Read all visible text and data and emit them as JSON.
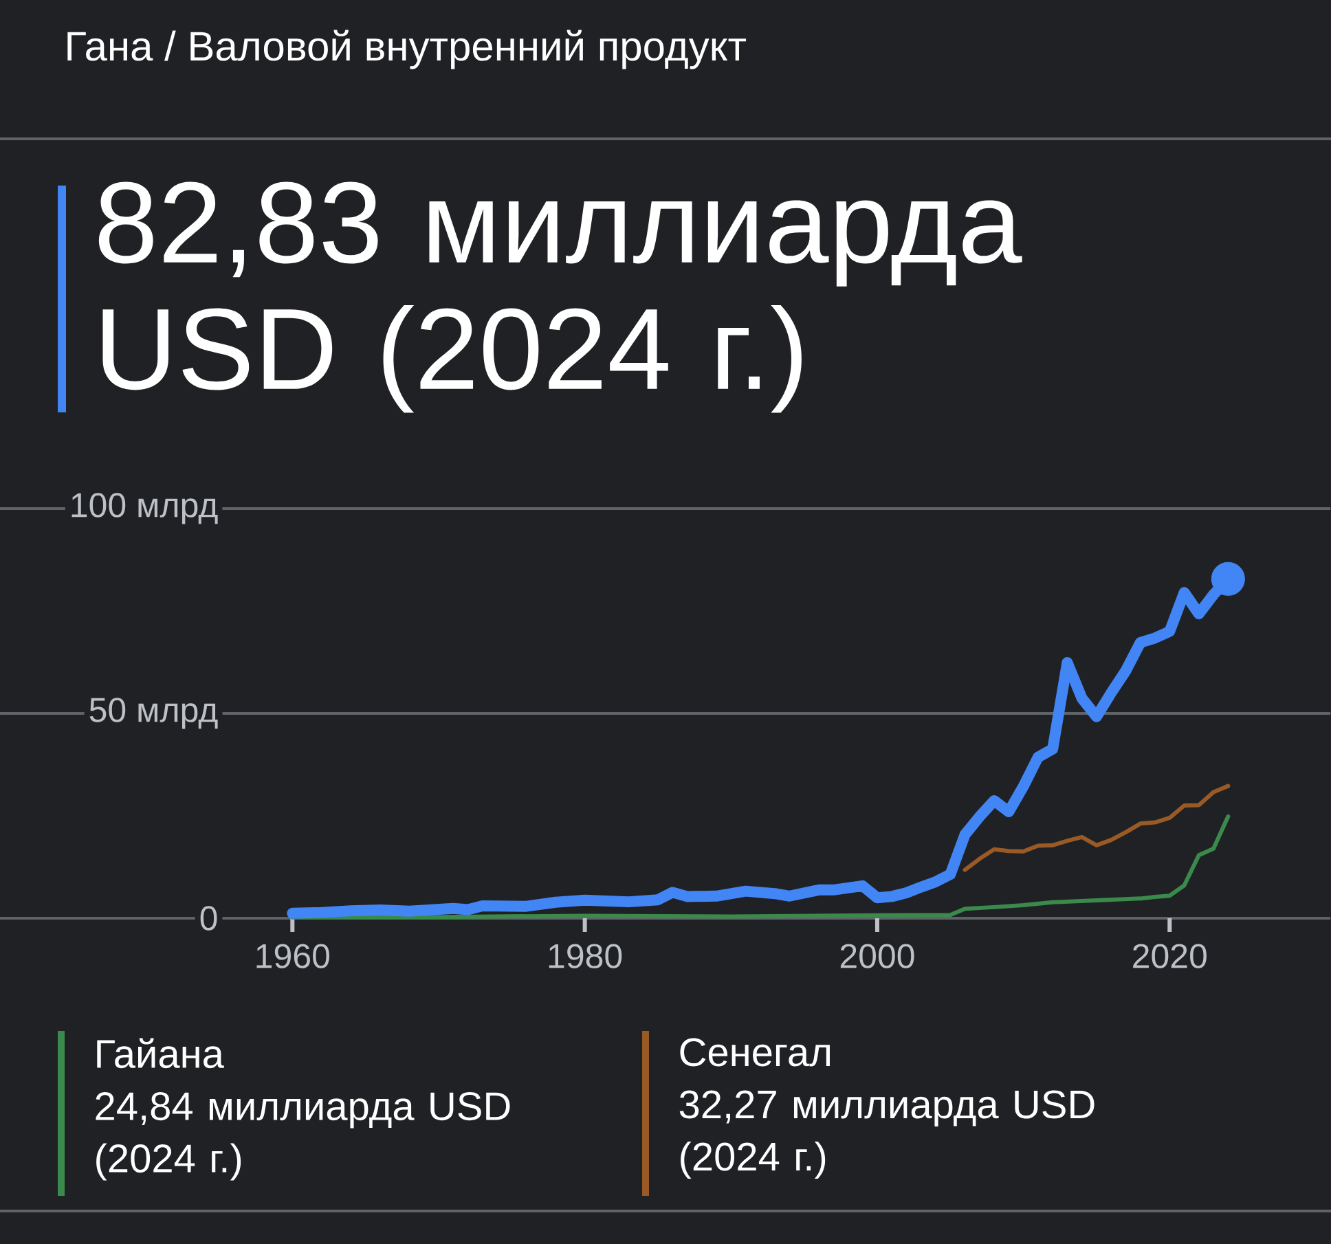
{
  "chart_data": {
    "type": "line",
    "subtitle": "Гана / Валовой внутренний продукт",
    "title": "82,83 миллиарда USD (2024 г.)",
    "xlim": [
      1940,
      2031
    ],
    "xticks": [
      1960,
      1980,
      2000,
      2020
    ],
    "ylim": [
      0,
      100
    ],
    "yticks": [
      {
        "value": 0,
        "label": "0"
      },
      {
        "value": 50,
        "label": "50 млрд"
      },
      {
        "value": 100,
        "label": "100 млрд"
      }
    ],
    "grid": "y",
    "legend": "bottom",
    "annotations": [
      "24,84 миллиарда USD (2024 г.)",
      "32,27 миллиарда USD (2024 г.)"
    ],
    "series": [
      {
        "color": "#4285f4",
        "x": [
          1960,
          1962,
          1964,
          1966,
          1968,
          1971,
          1972,
          1973,
          1976,
          1978,
          1980,
          1983,
          1985,
          1986,
          1987,
          1989,
          1991,
          1993,
          1994,
          1996,
          1997,
          1999,
          2000,
          2001,
          2002,
          2003,
          2004,
          2005,
          2006,
          2007,
          2008,
          2009,
          2010,
          2011,
          2012,
          2013,
          2014,
          2015,
          2016,
          2017,
          2018,
          2019,
          2020,
          2021,
          2022,
          2023,
          2024
        ],
        "values": [
          1.2,
          1.4,
          1.8,
          2.0,
          1.7,
          2.4,
          2.1,
          3.0,
          2.9,
          3.9,
          4.4,
          4.0,
          4.5,
          6.3,
          5.3,
          5.4,
          6.6,
          6.0,
          5.4,
          6.9,
          6.9,
          7.9,
          5.0,
          5.3,
          6.2,
          7.6,
          8.9,
          10.7,
          20.4,
          24.8,
          28.7,
          26.0,
          32.2,
          39.3,
          41.3,
          62.4,
          53.7,
          49.2,
          55.0,
          60.4,
          67.3,
          68.4,
          70.0,
          79.5,
          74.3,
          79.0,
          82.83
        ]
      },
      {
        "name": "Гайана",
        "color": "#3a8a4c",
        "x": [
          1960,
          1970,
          1980,
          1990,
          2000,
          2005,
          2006,
          2008,
          2010,
          2012,
          2014,
          2016,
          2018,
          2019,
          2020,
          2021,
          2022,
          2023,
          2024
        ],
        "values": [
          0.2,
          0.3,
          0.6,
          0.4,
          0.7,
          0.8,
          2.3,
          2.7,
          3.2,
          3.9,
          4.2,
          4.5,
          4.8,
          5.2,
          5.5,
          8.0,
          15.4,
          17.0,
          24.84
        ]
      },
      {
        "name": "Сенегал",
        "color": "#9a5a26",
        "x": [
          2006,
          2007,
          2008,
          2009,
          2010,
          2011,
          2012,
          2013,
          2014,
          2015,
          2016,
          2017,
          2018,
          2019,
          2020,
          2021,
          2022,
          2023,
          2024
        ],
        "values": [
          11.8,
          14.5,
          16.8,
          16.4,
          16.3,
          17.7,
          17.8,
          18.9,
          19.8,
          17.8,
          19.1,
          21.0,
          23.1,
          23.4,
          24.5,
          27.5,
          27.6,
          30.8,
          32.27
        ]
      },
      {
        "type": "scatter",
        "marker": "circle",
        "color": "#4285f4",
        "x": [
          2024
        ],
        "values": [
          82.83
        ]
      }
    ]
  }
}
